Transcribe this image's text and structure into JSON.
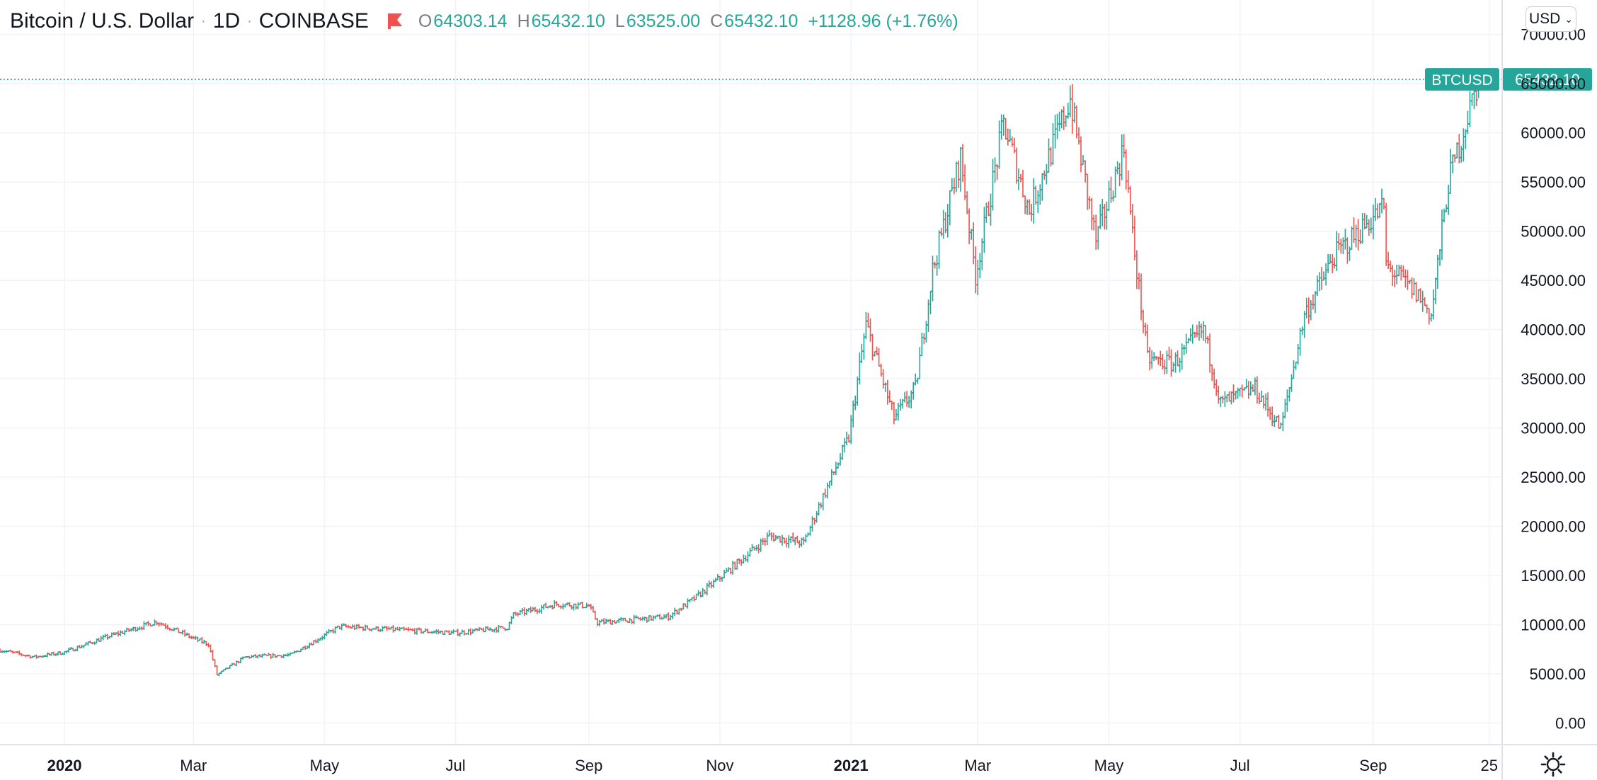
{
  "legend": {
    "symbol": "Bitcoin / U.S. Dollar",
    "interval": "1D",
    "exchange": "COINBASE",
    "open_key": "O",
    "open": "64303.14",
    "high_key": "H",
    "high": "65432.10",
    "low_key": "L",
    "low": "63525.00",
    "close_key": "C",
    "close": "65432.10",
    "change": "+1128.96 (+1.76%)"
  },
  "currency_button": {
    "label": "USD"
  },
  "icons": {
    "flag": "flag-icon",
    "settings": "gear-icon",
    "dropdown": "chevron-down-icon"
  },
  "colors": {
    "up": "#26a69a",
    "down": "#ef5350",
    "price_label": "#26a69a",
    "grid": "#f0f3fa",
    "axis_text": "#131722"
  },
  "chart_data": {
    "type": "ohlc",
    "title": "Bitcoin / U.S. Dollar · 1D · COINBASE",
    "series_name": "BTCUSD",
    "last_price": "65432.10",
    "ylim": [
      -2200,
      73500
    ],
    "y_ticks": [
      0,
      5000,
      10000,
      15000,
      20000,
      25000,
      30000,
      35000,
      40000,
      45000,
      50000,
      55000,
      60000,
      65000,
      70000
    ],
    "y_tick_labels": [
      "0.00",
      "5000.00",
      "10000.00",
      "15000.00",
      "20000.00",
      "25000.00",
      "30000.00",
      "35000.00",
      "40000.00",
      "45000.00",
      "50000.00",
      "55000.00",
      "60000.00",
      "65000.00",
      "70000.00"
    ],
    "x_ticks": [
      {
        "date": "2020-01-01",
        "label": "2020",
        "bold": true
      },
      {
        "date": "2020-03-01",
        "label": "Mar"
      },
      {
        "date": "2020-05-01",
        "label": "May"
      },
      {
        "date": "2020-07-01",
        "label": "Jul"
      },
      {
        "date": "2020-09-01",
        "label": "Sep"
      },
      {
        "date": "2020-11-01",
        "label": "Nov"
      },
      {
        "date": "2021-01-01",
        "label": "2021",
        "bold": true
      },
      {
        "date": "2021-03-01",
        "label": "Mar"
      },
      {
        "date": "2021-05-01",
        "label": "May"
      },
      {
        "date": "2021-07-01",
        "label": "Jul"
      },
      {
        "date": "2021-09-01",
        "label": "Sep"
      },
      {
        "date": "2021-10-25",
        "label": "25"
      }
    ],
    "x_range": [
      "2019-12-02",
      "2021-10-31"
    ],
    "last_date": "2021-10-20",
    "close_path": [
      [
        "2019-12-02",
        7400
      ],
      [
        "2019-12-18",
        6700
      ],
      [
        "2020-01-01",
        7200
      ],
      [
        "2020-01-20",
        8700
      ],
      [
        "2020-02-13",
        10300
      ],
      [
        "2020-03-01",
        8600
      ],
      [
        "2020-03-08",
        8000
      ],
      [
        "2020-03-12",
        4900
      ],
      [
        "2020-03-25",
        6700
      ],
      [
        "2020-04-15",
        6900
      ],
      [
        "2020-05-08",
        9800
      ],
      [
        "2020-06-01",
        9500
      ],
      [
        "2020-07-01",
        9150
      ],
      [
        "2020-07-25",
        9700
      ],
      [
        "2020-07-28",
        11000
      ],
      [
        "2020-08-17",
        12100
      ],
      [
        "2020-09-01",
        11900
      ],
      [
        "2020-09-05",
        10200
      ],
      [
        "2020-10-08",
        10800
      ],
      [
        "2020-10-21",
        12800
      ],
      [
        "2020-11-05",
        15500
      ],
      [
        "2020-11-24",
        19000
      ],
      [
        "2020-12-10",
        18300
      ],
      [
        "2020-12-16",
        21500
      ],
      [
        "2020-12-31",
        29000
      ],
      [
        "2021-01-08",
        40500
      ],
      [
        "2021-01-21",
        31000
      ],
      [
        "2021-01-31",
        34000
      ],
      [
        "2021-02-08",
        46000
      ],
      [
        "2021-02-21",
        57500
      ],
      [
        "2021-02-28",
        45500
      ],
      [
        "2021-03-13",
        61000
      ],
      [
        "2021-03-25",
        52000
      ],
      [
        "2021-04-13",
        63500
      ],
      [
        "2021-04-25",
        49000
      ],
      [
        "2021-05-08",
        58500
      ],
      [
        "2021-05-12",
        49500
      ],
      [
        "2021-05-19",
        37000
      ],
      [
        "2021-05-31",
        36500
      ],
      [
        "2021-06-14",
        40000
      ],
      [
        "2021-06-22",
        32500
      ],
      [
        "2021-07-08",
        34000
      ],
      [
        "2021-07-20",
        29900
      ],
      [
        "2021-07-31",
        41500
      ],
      [
        "2021-08-14",
        47500
      ],
      [
        "2021-09-06",
        52500
      ],
      [
        "2021-09-07",
        46500
      ],
      [
        "2021-09-22",
        43500
      ],
      [
        "2021-09-28",
        41500
      ],
      [
        "2021-10-06",
        55000
      ],
      [
        "2021-10-20",
        65432
      ]
    ]
  }
}
